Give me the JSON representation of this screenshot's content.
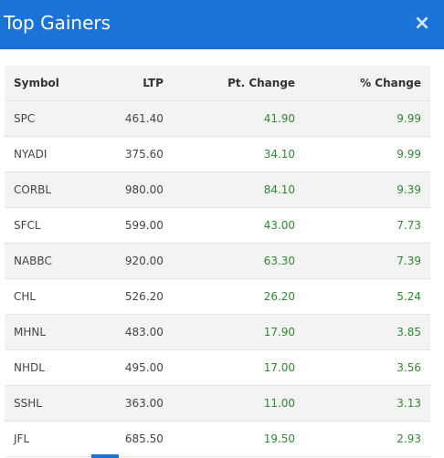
{
  "header": {
    "title": "Top Gainers",
    "close_icon": "×"
  },
  "table": {
    "columns": [
      "Symbol",
      "LTP",
      "Pt. Change",
      "% Change"
    ],
    "rows": [
      {
        "symbol": "SPC",
        "ltp": "461.40",
        "pt_change": "41.90",
        "pct_change": "9.99"
      },
      {
        "symbol": "NYADI",
        "ltp": "375.60",
        "pt_change": "34.10",
        "pct_change": "9.99"
      },
      {
        "symbol": "CORBL",
        "ltp": "980.00",
        "pt_change": "84.10",
        "pct_change": "9.39"
      },
      {
        "symbol": "SFCL",
        "ltp": "599.00",
        "pt_change": "43.00",
        "pct_change": "7.73"
      },
      {
        "symbol": "NABBC",
        "ltp": "920.00",
        "pt_change": "63.30",
        "pct_change": "7.39"
      },
      {
        "symbol": "CHL",
        "ltp": "526.20",
        "pt_change": "26.20",
        "pct_change": "5.24"
      },
      {
        "symbol": "MHNL",
        "ltp": "483.00",
        "pt_change": "17.90",
        "pct_change": "3.85"
      },
      {
        "symbol": "NHDL",
        "ltp": "495.00",
        "pt_change": "17.00",
        "pct_change": "3.56"
      },
      {
        "symbol": "SSHL",
        "ltp": "363.00",
        "pt_change": "11.00",
        "pct_change": "3.13"
      },
      {
        "symbol": "JFL",
        "ltp": "685.50",
        "pt_change": "19.50",
        "pct_change": "2.93"
      }
    ]
  },
  "colors": {
    "header_bg": "#1a73d9",
    "positive": "#2e8b2e",
    "row_alt": "#f3f3f3"
  }
}
